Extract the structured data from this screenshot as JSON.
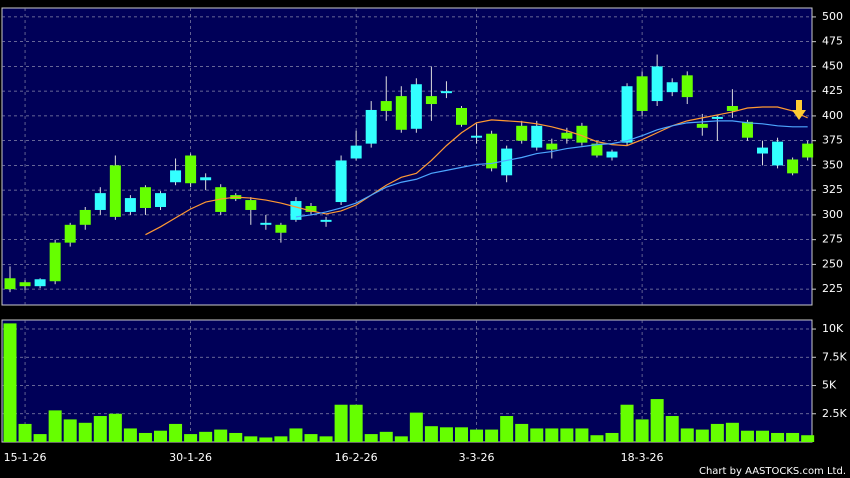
{
  "chart_data": {
    "type": "candlestick",
    "categories": [
      null,
      "15-1-26",
      null,
      null,
      null,
      null,
      null,
      null,
      null,
      null,
      null,
      null,
      "30-1-26",
      null,
      null,
      null,
      null,
      null,
      null,
      null,
      null,
      null,
      null,
      "16-2-26",
      null,
      null,
      null,
      null,
      null,
      null,
      null,
      "3-3-26",
      null,
      null,
      null,
      null,
      null,
      null,
      null,
      null,
      null,
      null,
      "18-3-26",
      null,
      null,
      null,
      null,
      null,
      null,
      null,
      null,
      null,
      null,
      null
    ],
    "open": [
      225,
      228,
      235,
      233,
      272,
      290,
      322,
      298,
      317,
      307,
      322,
      345,
      332,
      338,
      303,
      316,
      305,
      292,
      282,
      314,
      303,
      295,
      355,
      370,
      406,
      405,
      386,
      432,
      412,
      425,
      391,
      380,
      347,
      367,
      375,
      390,
      366,
      377,
      373,
      360,
      364,
      430,
      405,
      450,
      434,
      419,
      388,
      399,
      405,
      378,
      368,
      374,
      342,
      358
    ],
    "high": [
      248,
      234,
      236,
      275,
      292,
      308,
      328,
      360,
      320,
      330,
      324,
      357,
      362,
      342,
      331,
      322,
      318,
      300,
      292,
      318,
      312,
      298,
      360,
      385,
      415,
      440,
      430,
      438,
      450,
      435,
      410,
      392,
      385,
      370,
      395,
      395,
      377,
      388,
      393,
      375,
      366,
      433,
      445,
      462,
      438,
      445,
      402,
      400,
      427,
      396,
      375,
      378,
      358,
      375
    ],
    "low": [
      222,
      224,
      226,
      230,
      268,
      285,
      300,
      295,
      300,
      300,
      305,
      330,
      328,
      325,
      300,
      314,
      290,
      285,
      272,
      293,
      300,
      288,
      310,
      355,
      368,
      395,
      383,
      383,
      395,
      418,
      389,
      372,
      344,
      333,
      372,
      365,
      357,
      372,
      370,
      358,
      355,
      370,
      400,
      410,
      420,
      412,
      380,
      375,
      398,
      375,
      350,
      347,
      340,
      355
    ],
    "close": [
      236,
      232,
      228,
      272,
      290,
      305,
      305,
      350,
      303,
      328,
      308,
      333,
      360,
      335,
      328,
      320,
      315,
      290,
      290,
      295,
      309,
      293,
      313,
      357,
      372,
      415,
      420,
      387,
      420,
      423,
      408,
      378,
      382,
      340,
      390,
      368,
      372,
      383,
      390,
      372,
      358,
      373,
      440,
      415,
      424,
      441,
      392,
      397,
      410,
      394,
      362,
      350,
      356,
      372
    ],
    "up_color": "#66ff00",
    "down_color": "#33ffff",
    "series": [
      {
        "color": "#ff9933",
        "values": [
          null,
          null,
          null,
          null,
          null,
          null,
          null,
          null,
          null,
          280,
          288,
          297,
          306,
          313,
          316,
          318,
          317,
          315,
          312,
          308,
          304,
          301,
          304,
          310,
          320,
          330,
          338,
          342,
          355,
          370,
          383,
          393,
          396,
          395,
          394,
          392,
          389,
          385,
          380,
          374,
          371,
          370,
          376,
          383,
          390,
          395,
          398,
          401,
          404,
          408,
          409,
          409,
          405,
          398
        ]
      },
      {
        "color": "#4da6ff",
        "values": [
          null,
          null,
          null,
          null,
          null,
          null,
          null,
          null,
          null,
          null,
          null,
          null,
          null,
          null,
          null,
          null,
          null,
          null,
          null,
          298,
          300,
          303,
          307,
          312,
          320,
          328,
          333,
          336,
          342,
          345,
          348,
          351,
          352,
          355,
          358,
          362,
          364,
          367,
          369,
          371,
          372,
          375,
          380,
          386,
          390,
          393,
          394,
          395,
          395,
          393,
          392,
          390,
          389,
          389
        ]
      }
    ],
    "ylim": [
      209,
      509
    ],
    "yticks": [
      225,
      250,
      275,
      300,
      325,
      350,
      375,
      400,
      425,
      450,
      475,
      500
    ],
    "grid": true,
    "volume": {
      "color": "#66ff00",
      "values": [
        10500,
        1600,
        700,
        2800,
        2000,
        1700,
        2300,
        2500,
        1200,
        800,
        1000,
        1600,
        700,
        900,
        1100,
        800,
        500,
        400,
        500,
        1200,
        700,
        500,
        3300,
        3300,
        700,
        900,
        500,
        2600,
        1400,
        1300,
        1300,
        1100,
        1100,
        2300,
        1600,
        1200,
        1200,
        1200,
        1200,
        600,
        800,
        3300,
        2000,
        3800,
        2300,
        1200,
        1100,
        1600,
        1700,
        1000,
        1000,
        800,
        800,
        600
      ],
      "ylim": [
        0,
        10800
      ],
      "yticks": [
        {
          "value": 2500,
          "label": "2.5K"
        },
        {
          "value": 5000,
          "label": "5K"
        },
        {
          "value": 7500,
          "label": "7.5K"
        },
        {
          "value": 10000,
          "label": "10K"
        }
      ]
    },
    "credit": "Chart by AASTOCKS.com Ltd."
  }
}
